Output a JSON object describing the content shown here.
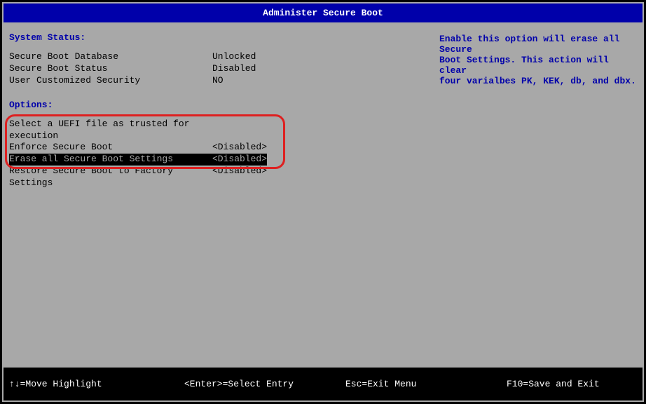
{
  "title": "Administer Secure Boot",
  "status": {
    "header": "System Status:",
    "rows": [
      {
        "label": "Secure Boot Database",
        "value": "Unlocked"
      },
      {
        "label": "Secure Boot Status",
        "value": "Disabled"
      },
      {
        "label": "User Customized Security",
        "value": "NO"
      }
    ]
  },
  "options": {
    "header": "Options:",
    "items": [
      {
        "label": "Select a UEFI file as trusted for execution",
        "value": "",
        "selected": false
      },
      {
        "label": "Enforce Secure Boot",
        "value": "<Disabled>",
        "selected": false
      },
      {
        "label": "Erase all Secure Boot Settings",
        "value": "<Disabled>",
        "selected": true
      },
      {
        "label": "Restore Secure Boot to Factory Settings",
        "value": "<Disabled>",
        "selected": false
      }
    ]
  },
  "help": {
    "line1": "Enable this option will erase all Secure",
    "line2": "Boot Settings.  This action will clear",
    "line3": "four varialbes PK, KEK, db, and dbx."
  },
  "footer": {
    "move": "↑↓=Move Highlight",
    "select": "<Enter>=Select Entry",
    "exit": "Esc=Exit Menu",
    "save": "F10=Save and Exit"
  },
  "colors": {
    "titlebar_bg": "#0000aa",
    "panel_bg": "#a8a8a8",
    "accent_text": "#0000aa",
    "highlight_border": "#de2020"
  }
}
